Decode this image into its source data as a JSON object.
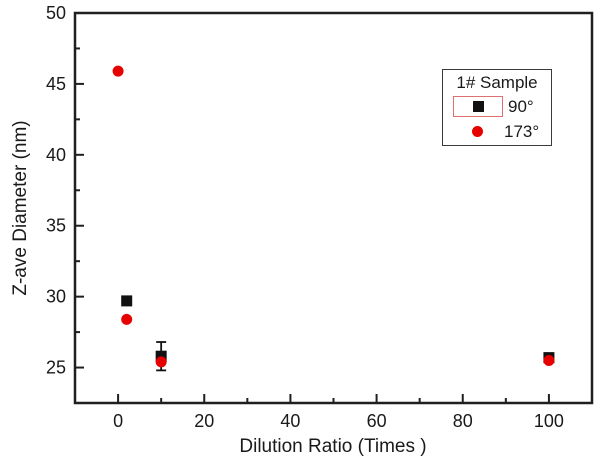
{
  "figure": {
    "background": "#ffffff",
    "frame_color": "#1f1f1f",
    "tick_color": "#1f1f1f",
    "text_color": "#1a1a1a"
  },
  "legend": {
    "title": "1# Sample",
    "items": [
      {
        "label": "90°",
        "marker": "square",
        "color": "#111111",
        "selection_box_color": "#e07070",
        "selected": true
      },
      {
        "label": "173°",
        "marker": "circle",
        "color": "#e60000",
        "selected": false
      }
    ]
  },
  "chart_data": {
    "type": "scatter",
    "title": "",
    "xlabel": "Dilution Ratio (Times )",
    "ylabel": "Z-ave Diameter (nm)",
    "xlim": [
      -10,
      110
    ],
    "ylim": [
      22.5,
      50
    ],
    "x_major_ticks": [
      0,
      20,
      40,
      60,
      80,
      100
    ],
    "x_minor_ticks": [
      10,
      30,
      50,
      70,
      90
    ],
    "y_major_ticks": [
      25,
      30,
      35,
      40,
      45,
      50
    ],
    "y_minor_ticks": [
      27.5,
      32.5,
      37.5,
      42.5,
      47.5
    ],
    "grid": false,
    "legend_position": "upper right",
    "series": [
      {
        "name": "90°",
        "marker": "square",
        "color": "#111111",
        "points": [
          {
            "x": 2,
            "y": 29.7
          },
          {
            "x": 10,
            "y": 25.8,
            "yerr": 1.0
          },
          {
            "x": 100,
            "y": 25.7
          }
        ]
      },
      {
        "name": "173°",
        "marker": "circle",
        "color": "#e60000",
        "points": [
          {
            "x": 0,
            "y": 45.9
          },
          {
            "x": 2,
            "y": 28.4
          },
          {
            "x": 10,
            "y": 25.4
          },
          {
            "x": 100,
            "y": 25.5
          }
        ]
      }
    ]
  }
}
